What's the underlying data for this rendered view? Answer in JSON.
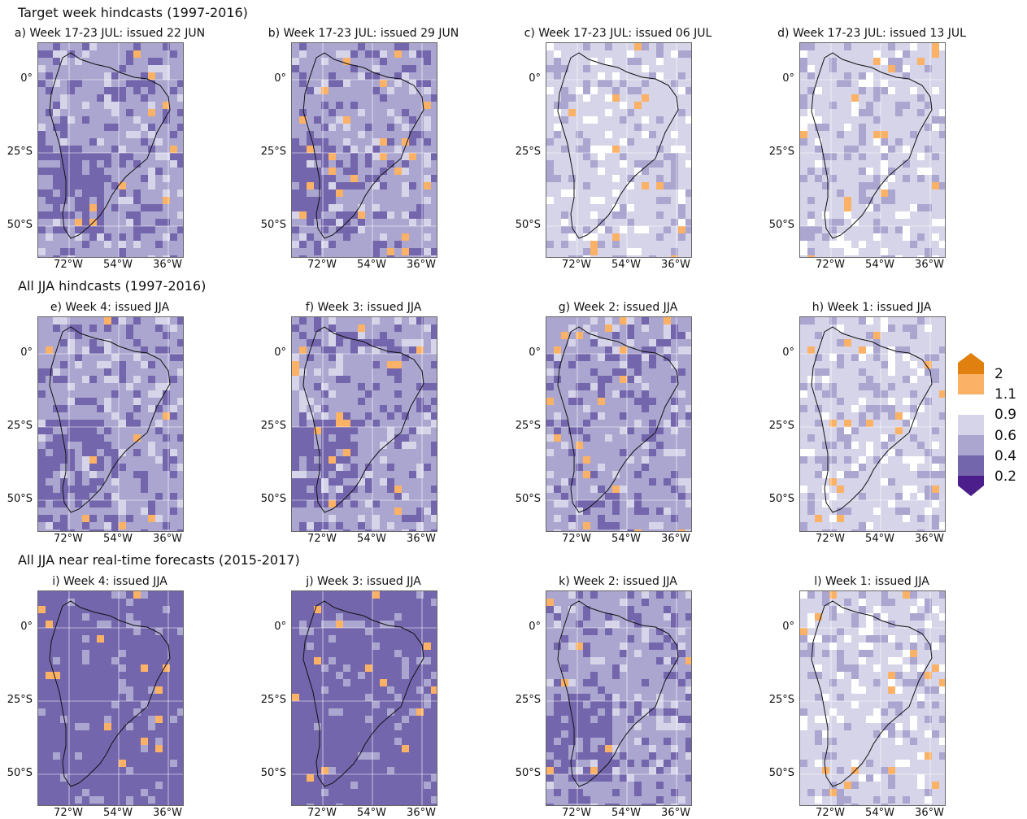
{
  "rows": [
    {
      "title": "Target week hindcasts (1997-2016)",
      "panels": [
        "a) Week 17-23 JUL: issued 22 JUN",
        "b) Week 17-23 JUL: issued 29 JUN",
        "c) Week 17-23 JUL: issued 06 JUL",
        "d) Week 17-23 JUL: issued 13 JUL"
      ]
    },
    {
      "title": "All JJA hindcasts (1997-2016)",
      "panels": [
        "e) Week 4: issued JJA",
        "f) Week 3: issued JJA",
        "g) Week 2: issued JJA",
        "h) Week 1: issued JJA"
      ]
    },
    {
      "title": "All JJA near real-time forecasts (2015-2017)",
      "panels": [
        "i) Week 4: issued JJA",
        "j) Week 3: issued JJA",
        "k) Week 2: issued JJA",
        "l) Week 1: issued JJA"
      ]
    }
  ],
  "chart_data": {
    "type": "heatmap",
    "xticks": [
      "72°W",
      "54°W",
      "36°W"
    ],
    "yticks": [
      "0°",
      "25°S",
      "50°S"
    ],
    "colorbar": {
      "labels": [
        "2",
        "1.1",
        "0.9",
        "0.6",
        "0.4",
        "0.2"
      ],
      "bounds": [
        0.2,
        0.4,
        0.6,
        0.9,
        1.1,
        2
      ],
      "colors": [
        "#4b1e8c",
        "#7466ac",
        "#aaa6cf",
        "#d6d4e8",
        "#ffffff",
        "#fbb166",
        "#e0800f"
      ]
    },
    "panel_levels": {
      "a": {
        "base": 2,
        "dark_south": true
      },
      "b": {
        "base": 2,
        "dark_south": true
      },
      "c": {
        "base": 3,
        "dark_south": false
      },
      "d": {
        "base": 3,
        "dark_south": false
      },
      "e": {
        "base": 2,
        "dark_south": true
      },
      "f": {
        "base": 2,
        "dark_south": true
      },
      "g": {
        "base": 2,
        "dark_south": false
      },
      "h": {
        "base": 3,
        "dark_south": false
      },
      "i": {
        "base": 1,
        "dark_south": true
      },
      "j": {
        "base": 1,
        "dark_south": true
      },
      "k": {
        "base": 2,
        "dark_south": true
      },
      "l": {
        "base": 3,
        "dark_south": false
      }
    }
  }
}
